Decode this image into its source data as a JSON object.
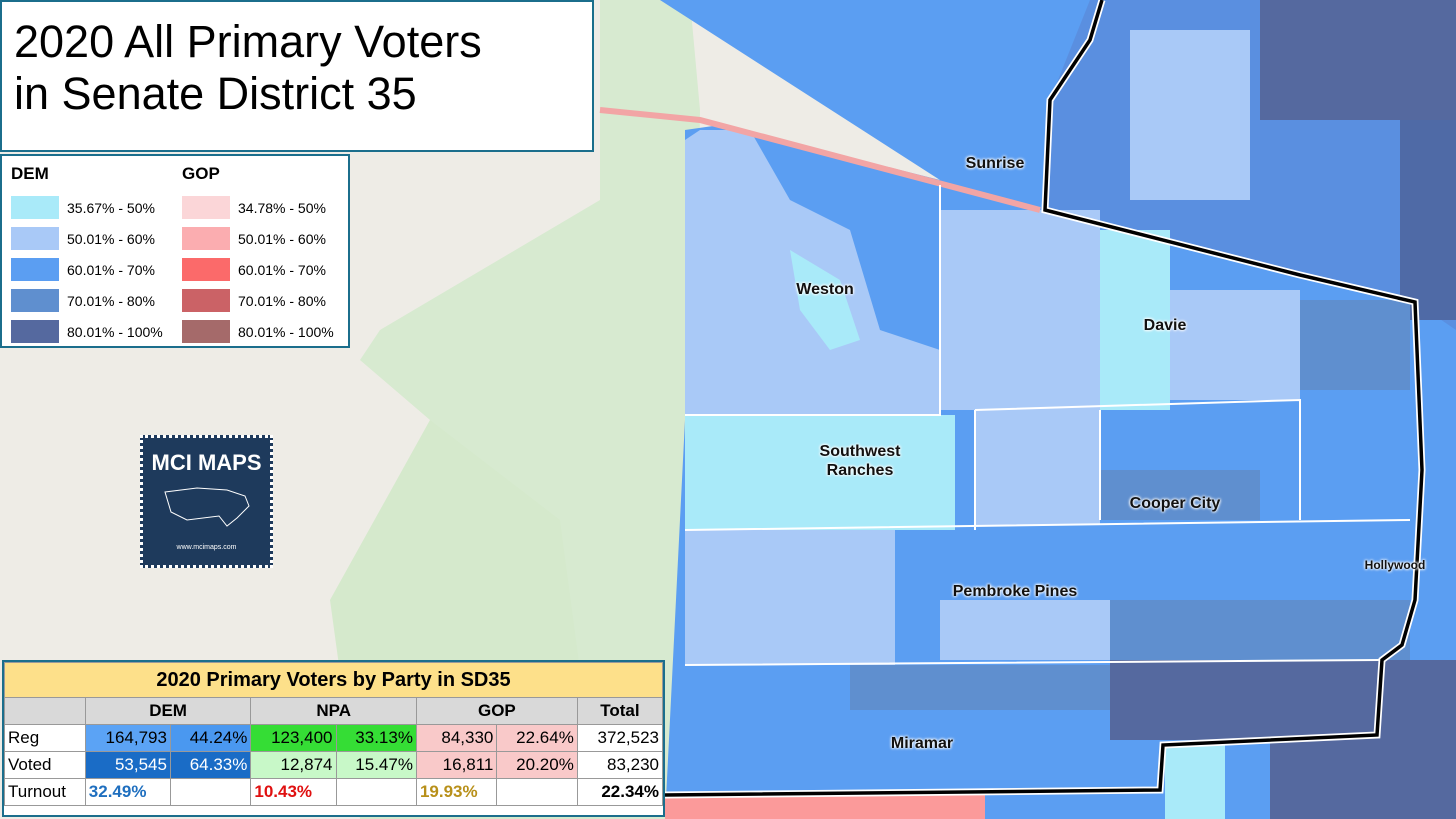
{
  "title": [
    "2020 All Primary Voters",
    "in Senate District 35"
  ],
  "legend": {
    "groups": [
      {
        "name": "DEM",
        "items": [
          {
            "label": "35.67% - 50%",
            "color": "#a9eaf9"
          },
          {
            "label": "50.01% - 60%",
            "color": "#a9c9f7"
          },
          {
            "label": "60.01% - 70%",
            "color": "#5b9ef2"
          },
          {
            "label": "70.01% - 80%",
            "color": "#5f8fcf"
          },
          {
            "label": "80.01% - 100%",
            "color": "#55699f"
          }
        ]
      },
      {
        "name": "GOP",
        "items": [
          {
            "label": "34.78% - 50%",
            "color": "#fbd6d8"
          },
          {
            "label": "50.01% - 60%",
            "color": "#fbadb0"
          },
          {
            "label": "60.01% - 70%",
            "color": "#fb6a6a"
          },
          {
            "label": "70.01% - 80%",
            "color": "#cb6266"
          },
          {
            "label": "80.01% - 100%",
            "color": "#a56a6a"
          }
        ]
      }
    ]
  },
  "places": [
    "Sunrise",
    "Weston",
    "Davie",
    "Southwest Ranches",
    "Cooper City",
    "Hollywood",
    "Pembroke Pines",
    "Miramar"
  ],
  "logo": {
    "title": "MCI MAPS",
    "url": "www.mcimaps.com"
  },
  "table": {
    "title": "2020 Primary Voters by Party in SD35",
    "header": [
      "DEM",
      "NPA",
      "GOP",
      "Total"
    ],
    "rows": [
      [
        "Reg",
        "164,793",
        "44.24%",
        "123,400",
        "33.13%",
        "84,330",
        "22.64%",
        "372,523"
      ],
      [
        "Voted",
        "53,545",
        "64.33%",
        "12,874",
        "15.47%",
        "16,811",
        "20.20%",
        "83,230"
      ],
      [
        "Turnout",
        "32.49%",
        "10.43%",
        "19.93%",
        "22.34%"
      ]
    ]
  }
}
